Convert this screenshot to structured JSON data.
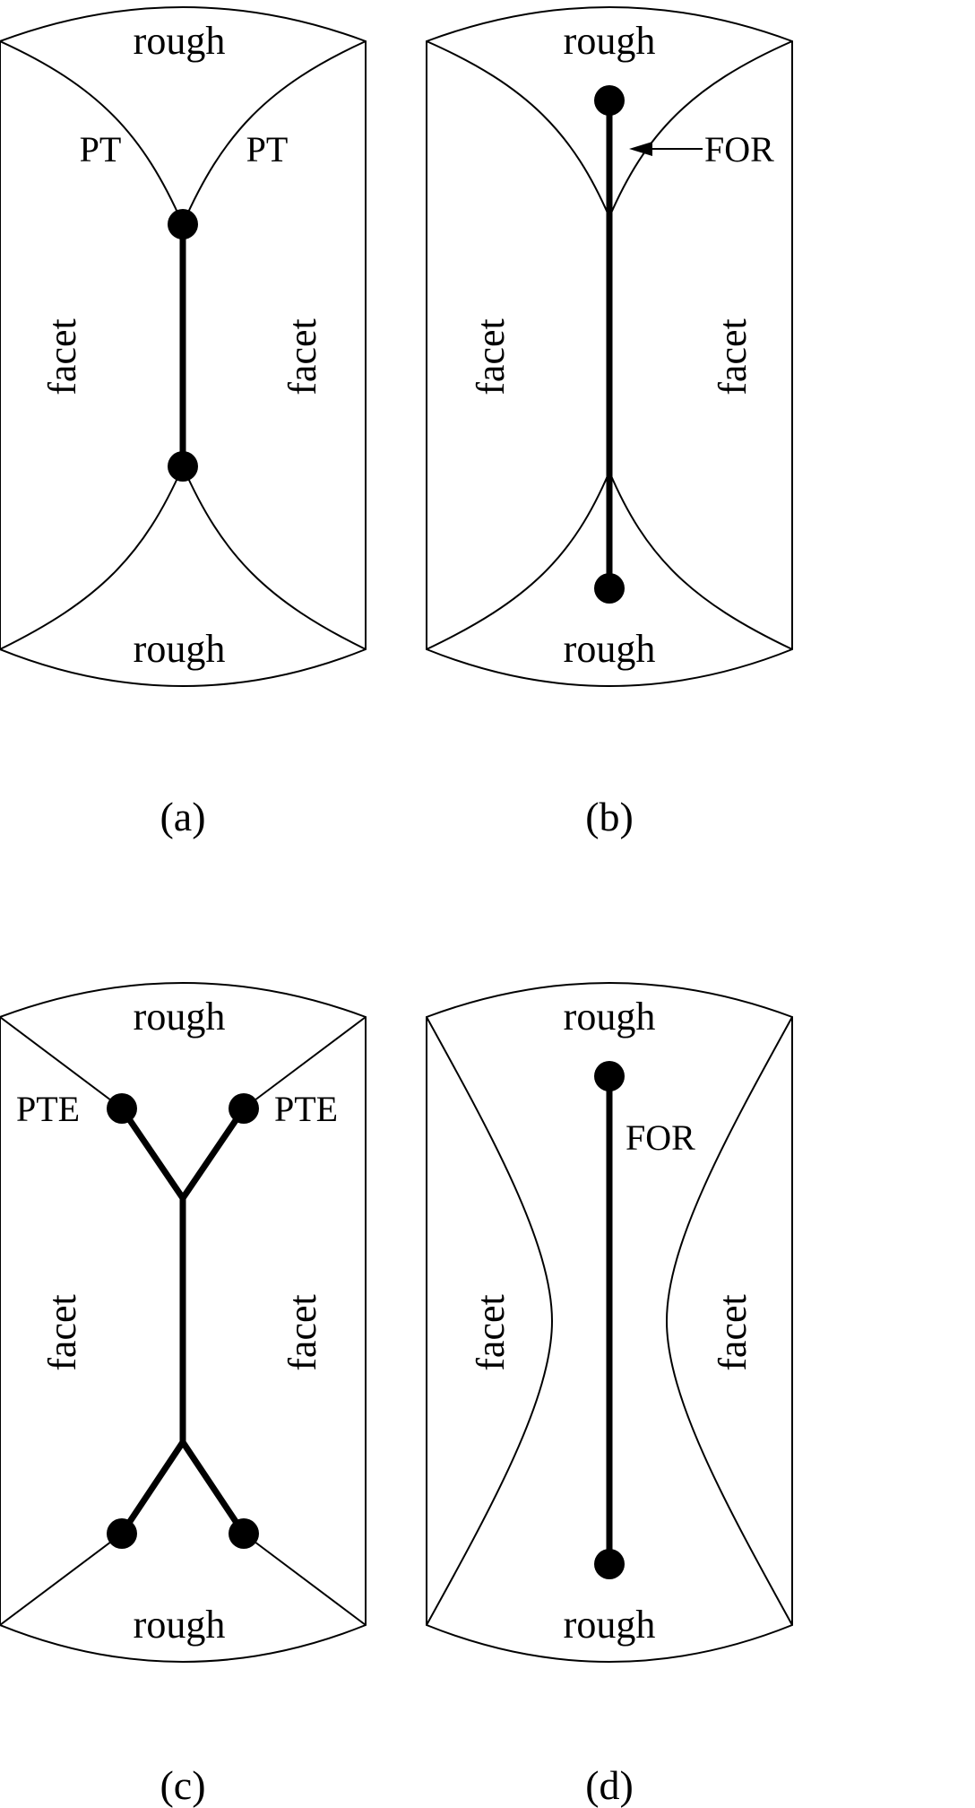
{
  "panels": {
    "a": {
      "caption": "(a)",
      "label_top": "rough",
      "label_bottom": "rough",
      "label_left": "facet",
      "label_right": "facet",
      "callout_left": "PT",
      "callout_right": "PT"
    },
    "b": {
      "caption": "(b)",
      "label_top": "rough",
      "label_bottom": "rough",
      "label_left": "facet",
      "label_right": "facet",
      "callout": "FOR"
    },
    "c": {
      "caption": "(c)",
      "label_top": "rough",
      "label_bottom": "rough",
      "label_left": "facet",
      "label_right": "facet",
      "callout_left": "PTE",
      "callout_right": "PTE"
    },
    "d": {
      "caption": "(d)",
      "label_top": "rough",
      "label_bottom": "rough",
      "label_left": "facet",
      "label_right": "facet",
      "callout": "FOR"
    }
  },
  "colors": {
    "ink": "#000000",
    "background": "#ffffff"
  }
}
